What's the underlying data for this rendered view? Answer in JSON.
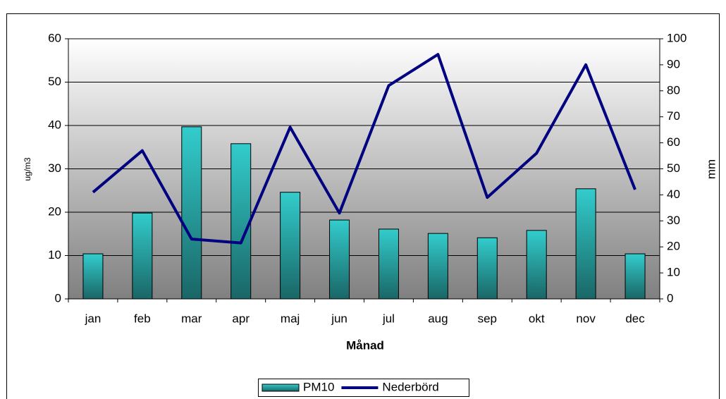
{
  "chart_data": {
    "type": "bar",
    "categories": [
      "jan",
      "feb",
      "mar",
      "apr",
      "maj",
      "jun",
      "jul",
      "aug",
      "sep",
      "okt",
      "nov",
      "dec"
    ],
    "series": [
      {
        "name": "PM10",
        "type": "bar",
        "color": "#33cccc",
        "values": [
          10.4,
          19.8,
          39.7,
          35.8,
          24.6,
          18.2,
          16.1,
          15.1,
          14.1,
          15.8,
          25.4,
          10.4
        ]
      },
      {
        "name": "Nederbörd",
        "type": "line",
        "axis": "y2",
        "color": "#000080",
        "values": [
          41,
          57,
          23,
          21.5,
          66,
          33,
          82,
          94,
          39,
          56,
          90,
          42
        ]
      }
    ],
    "x_label": "Månad",
    "y_label": "ug/m3",
    "y2_label": "mm",
    "ylim": [
      0,
      60
    ],
    "yticks": [
      0,
      10,
      20,
      30,
      40,
      50,
      60
    ],
    "y2lim": [
      0,
      100
    ],
    "y2ticks": [
      0,
      10,
      20,
      30,
      40,
      50,
      60,
      70,
      80,
      90,
      100
    ],
    "grid": true,
    "legend": "bottom"
  }
}
